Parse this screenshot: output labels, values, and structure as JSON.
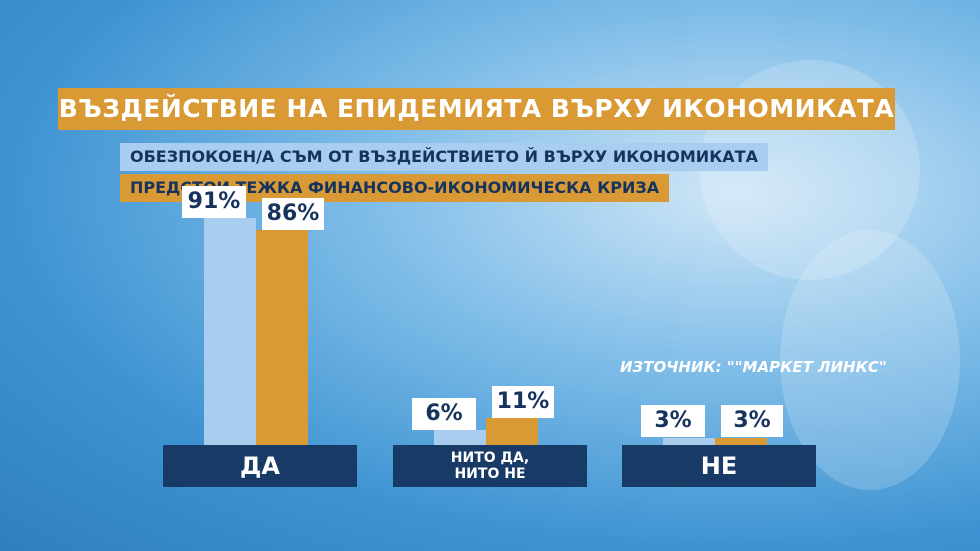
{
  "chart_data": {
    "type": "bar",
    "title": "ВЪЗДЕЙСТВИЕ НА ЕПИДЕМИЯТА ВЪРХУ ИКОНОМИКАТА",
    "categories": [
      "ДА",
      "НИТО ДА, НИТО НЕ",
      "НЕ"
    ],
    "series": [
      {
        "name": "ОБЕЗПОКОЕН/А СЪМ ОТ ВЪЗДЕЙСТВИЕТО Й ВЪРХУ ИКОНОМИКАТА",
        "color": "#a9cdee",
        "values": [
          91,
          6,
          3
        ],
        "value_labels": [
          "91%",
          "6%",
          "3%"
        ]
      },
      {
        "name": "ПРЕДСТОИ ТЕЖКА ФИНАНСОВО-ИКОНОМИЧЕСКА КРИЗА",
        "color": "#d99a36",
        "values": [
          86,
          11,
          3
        ],
        "value_labels": [
          "86%",
          "11%",
          "3%"
        ]
      }
    ],
    "source": "ИЗТОЧНИК: \"\"МАРКЕТ ЛИНКС\""
  }
}
